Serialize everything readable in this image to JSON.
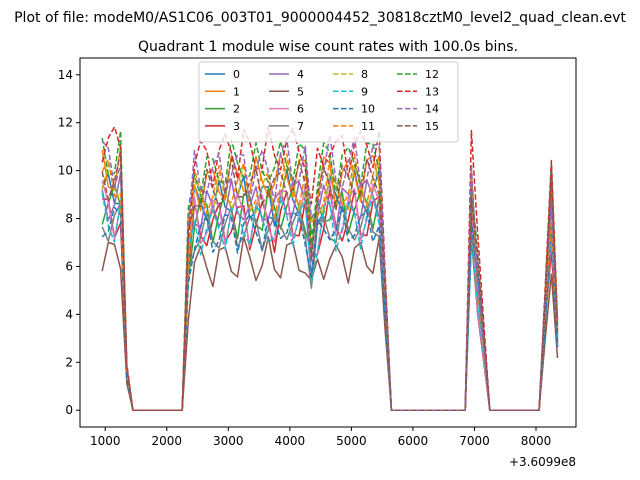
{
  "chart_data": {
    "type": "line",
    "suptitle": "Plot of file: modeM0/AS1C06_003T01_9000004452_30818cztM0_level2_quad_clean.evt",
    "title": "Quadrant 1 module wise count rates with 100.0s bins.",
    "xlabel": "",
    "ylabel": "",
    "x_offset_label": "+3.6099e8",
    "xlim": [
      590,
      8650
    ],
    "ylim": [
      -0.7,
      14.7
    ],
    "xticks": [
      1000,
      2000,
      3000,
      4000,
      5000,
      6000,
      7000,
      8000
    ],
    "xtick_labels": [
      "1000",
      "2000",
      "3000",
      "4000",
      "5000",
      "6000",
      "7000",
      "8000"
    ],
    "yticks": [
      0,
      2,
      4,
      6,
      8,
      10,
      12,
      14
    ],
    "ytick_labels": [
      "0",
      "2",
      "4",
      "6",
      "8",
      "10",
      "12",
      "14"
    ],
    "legend": {
      "position": "top-center",
      "columns": 4
    },
    "base_profile": {
      "x": [
        950,
        1050,
        1150,
        1250,
        1350,
        1450,
        2250,
        2350,
        2450,
        2550,
        2650,
        2750,
        2850,
        2950,
        3050,
        3150,
        3250,
        3350,
        3450,
        3550,
        3650,
        3750,
        3850,
        3950,
        4050,
        4150,
        4250,
        4350,
        4450,
        4550,
        4650,
        4750,
        4850,
        4950,
        5050,
        5150,
        5250,
        5350,
        5450,
        5550,
        5650,
        6850,
        6950,
        7050,
        7250,
        8050,
        8150,
        8250,
        8350
      ],
      "shape": [
        1.0,
        0.98,
        0.95,
        1.0,
        0.17,
        0,
        0,
        0.7,
        0.94,
        0.9,
        0.93,
        0.91,
        0.95,
        0.92,
        0.97,
        0.93,
        0.98,
        0.91,
        0.95,
        0.94,
        0.96,
        0.9,
        0.97,
        1.0,
        0.94,
        0.96,
        0.97,
        0.72,
        0.88,
        0.95,
        1.0,
        0.91,
        0.96,
        0.94,
        1.0,
        0.93,
        0.97,
        0.98,
        1.0,
        0.5,
        0,
        0,
        0.96,
        0.6,
        0,
        0,
        0.45,
        0.9,
        0.33
      ]
    },
    "series": [
      {
        "name": "0",
        "color": "#1f77b4",
        "dash": "solid",
        "level": 9.3,
        "jitter": 0.25
      },
      {
        "name": "1",
        "color": "#ff7f0e",
        "dash": "solid",
        "level": 10.2,
        "jitter": 0.3
      },
      {
        "name": "2",
        "color": "#2ca02c",
        "dash": "solid",
        "level": 8.8,
        "jitter": 0.35
      },
      {
        "name": "3",
        "color": "#d62728",
        "dash": "solid",
        "level": 8.3,
        "jitter": 0.3
      },
      {
        "name": "4",
        "color": "#9467bd",
        "dash": "solid",
        "level": 9.0,
        "jitter": 0.3
      },
      {
        "name": "5",
        "color": "#8c564b",
        "dash": "solid",
        "level": 6.6,
        "jitter": 0.3
      },
      {
        "name": "6",
        "color": "#e377c2",
        "dash": "solid",
        "level": 8.6,
        "jitter": 0.35
      },
      {
        "name": "7",
        "color": "#7f7f7f",
        "dash": "solid",
        "level": 8.0,
        "jitter": 0.3
      },
      {
        "name": "8",
        "color": "#bcbd22",
        "dash": "dashed",
        "level": 9.6,
        "jitter": 0.3
      },
      {
        "name": "9",
        "color": "#17becf",
        "dash": "dashed",
        "level": 8.2,
        "jitter": 0.3
      },
      {
        "name": "10",
        "color": "#1f77b4",
        "dash": "dashed",
        "level": 8.0,
        "jitter": 0.3
      },
      {
        "name": "11",
        "color": "#ff7f0e",
        "dash": "dashed",
        "level": 9.8,
        "jitter": 0.3
      },
      {
        "name": "12",
        "color": "#2ca02c",
        "dash": "dashed",
        "level": 10.8,
        "jitter": 0.3
      },
      {
        "name": "13",
        "color": "#d62728",
        "dash": "dashed",
        "level": 11.4,
        "jitter": 0.35
      },
      {
        "name": "14",
        "color": "#9467bd",
        "dash": "dashed",
        "level": 10.6,
        "jitter": 0.3
      },
      {
        "name": "15",
        "color": "#8c564b",
        "dash": "dashed",
        "level": 9.9,
        "jitter": 0.3
      }
    ]
  }
}
